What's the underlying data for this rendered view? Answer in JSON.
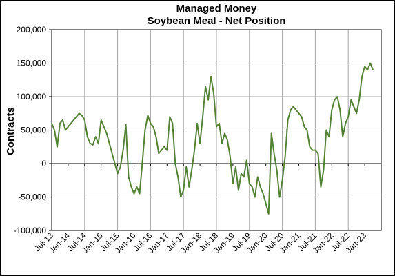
{
  "chart_data": {
    "type": "line",
    "title": "Managed Money",
    "subtitle": "Soybean Meal - Net Position",
    "y_label": "Contracts",
    "categories": [
      "Jul-13",
      null,
      null,
      null,
      null,
      null,
      "Jan-14",
      null,
      null,
      null,
      null,
      null,
      "Jul-14",
      null,
      null,
      null,
      null,
      null,
      "Jan-15",
      null,
      null,
      null,
      null,
      null,
      "Jul-15",
      null,
      null,
      null,
      null,
      null,
      "Jan-16",
      null,
      null,
      null,
      null,
      null,
      "Jul-16",
      null,
      null,
      null,
      null,
      null,
      "Jan-17",
      null,
      null,
      null,
      null,
      null,
      "Jul-17",
      null,
      null,
      null,
      null,
      null,
      "Jan-18",
      null,
      null,
      null,
      null,
      null,
      "Jul-18",
      null,
      null,
      null,
      null,
      null,
      "Jan-19",
      null,
      null,
      null,
      null,
      null,
      "Jul-19",
      null,
      null,
      null,
      null,
      null,
      "Jan-20",
      null,
      null,
      null,
      null,
      null,
      "Jul-20",
      null,
      null,
      null,
      null,
      null,
      "Jan-21",
      null,
      null,
      null,
      null,
      null,
      "Jul-21",
      null,
      null,
      null,
      null,
      null,
      "Jan-22",
      null,
      null,
      null,
      null,
      null,
      "Jul-22",
      null,
      null,
      null,
      null,
      null,
      "Jan-23",
      null,
      null,
      null
    ],
    "series": [
      {
        "name": "Net Position",
        "color": "#548235",
        "values": [
          60000,
          50000,
          25000,
          60000,
          65000,
          50000,
          55000,
          60000,
          65000,
          70000,
          75000,
          72000,
          65000,
          40000,
          30000,
          28000,
          40000,
          30000,
          65000,
          55000,
          45000,
          30000,
          15000,
          0,
          -15000,
          -5000,
          20000,
          58000,
          -20000,
          -35000,
          -45000,
          -35000,
          -45000,
          0,
          50000,
          72000,
          60000,
          55000,
          40000,
          15000,
          20000,
          25000,
          20000,
          70000,
          60000,
          0,
          -20000,
          -50000,
          -40000,
          -5000,
          -35000,
          -10000,
          20000,
          60000,
          30000,
          70000,
          115000,
          95000,
          130000,
          105000,
          55000,
          60000,
          30000,
          45000,
          35000,
          10000,
          -30000,
          -5000,
          -40000,
          -15000,
          -20000,
          5000,
          -30000,
          -35000,
          -50000,
          -20000,
          -35000,
          -45000,
          -60000,
          -75000,
          45000,
          15000,
          -10000,
          -50000,
          -25000,
          10000,
          65000,
          80000,
          85000,
          80000,
          75000,
          70000,
          55000,
          50000,
          25000,
          20000,
          20000,
          15000,
          -35000,
          -10000,
          50000,
          40000,
          80000,
          95000,
          100000,
          80000,
          40000,
          60000,
          70000,
          95000,
          85000,
          75000,
          95000,
          130000,
          145000,
          140000,
          150000,
          140000
        ]
      }
    ],
    "ylim": [
      -100000,
      200000
    ],
    "yticks": [
      {
        "value": -100000,
        "label": "-100,000"
      },
      {
        "value": -50000,
        "label": "-50,000"
      },
      {
        "value": 0,
        "label": "0"
      },
      {
        "value": 50000,
        "label": "50,000"
      },
      {
        "value": 100000,
        "label": "100,000"
      },
      {
        "value": 150000,
        "label": "150,000"
      },
      {
        "value": 200000,
        "label": "200,000"
      }
    ],
    "grid": true
  }
}
